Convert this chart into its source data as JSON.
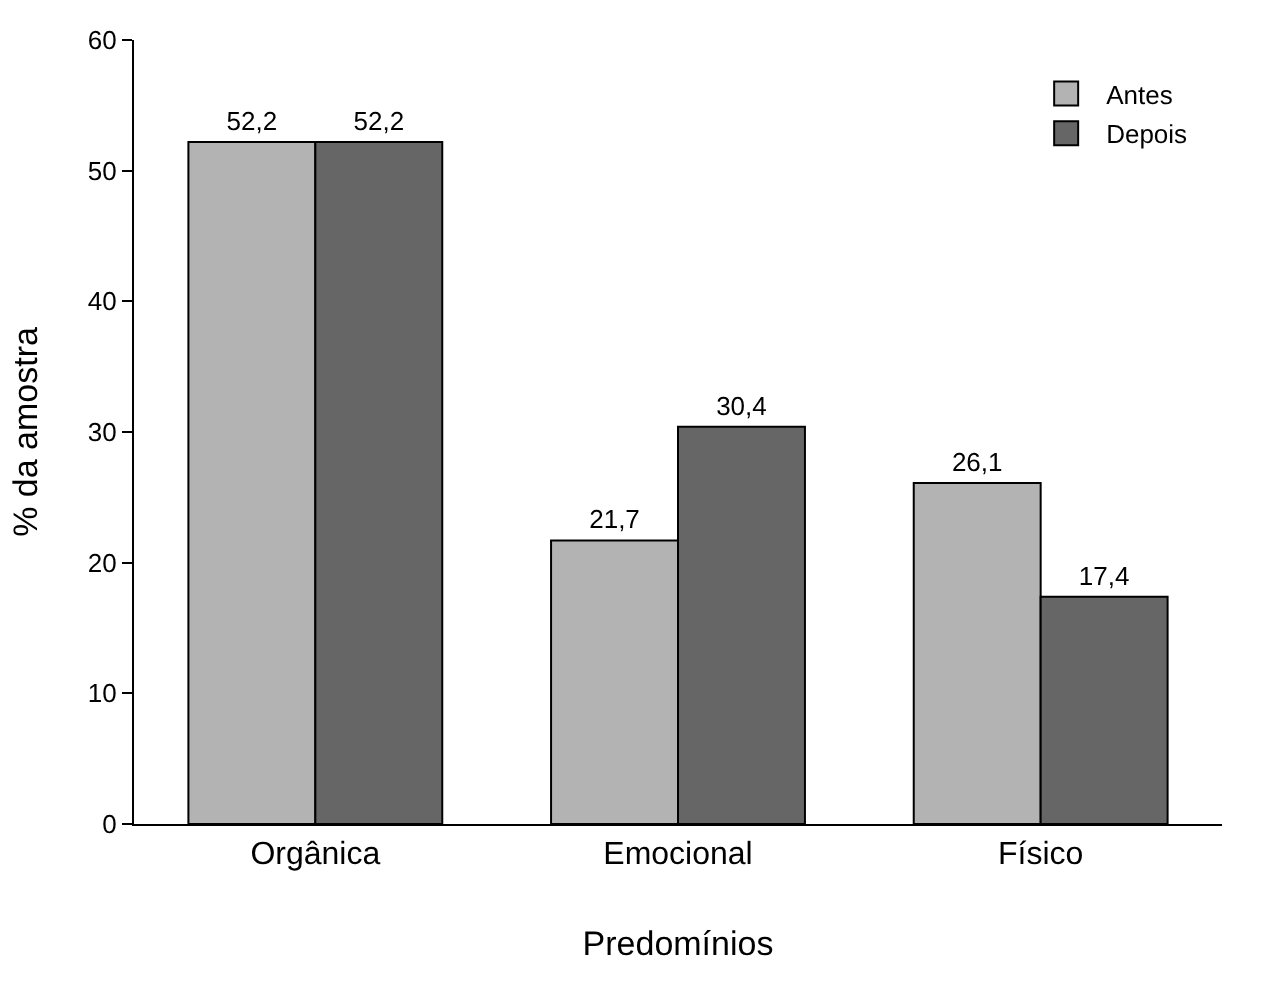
{
  "chart_data": {
    "type": "bar",
    "xlabel": "Predomínios",
    "ylabel": "% da amostra",
    "categories": [
      "Orgânica",
      "Emocional",
      "Físico"
    ],
    "series": [
      {
        "name": "Antes",
        "color": "#b3b3b3",
        "values": [
          52.2,
          21.7,
          26.1
        ],
        "value_labels": [
          "52,2",
          "21,7",
          "26,1"
        ]
      },
      {
        "name": "Depois",
        "color": "#666666",
        "values": [
          52.2,
          30.4,
          17.4
        ],
        "value_labels": [
          "52,2",
          "30,4",
          "17,4"
        ]
      }
    ],
    "ylim": [
      0,
      60
    ],
    "yticks": [
      0,
      10,
      20,
      30,
      40,
      50,
      60
    ],
    "legend": "top right"
  }
}
